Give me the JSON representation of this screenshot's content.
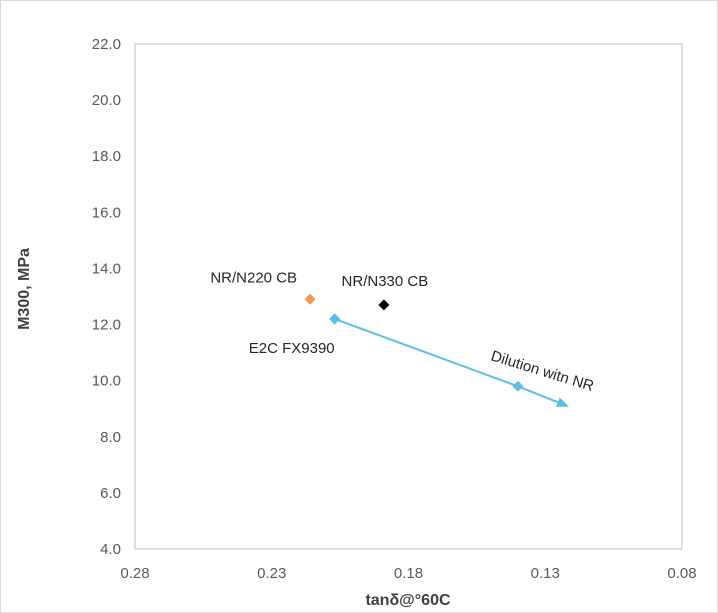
{
  "chart_data": {
    "type": "scatter",
    "title": "",
    "xlabel": "tanδ@°60C",
    "ylabel": "M300, MPa",
    "xlim": [
      0.28,
      0.08
    ],
    "ylim": [
      4.0,
      22.0
    ],
    "x_reversed": true,
    "grid": false,
    "x_ticks": [
      "0.28",
      "0.23",
      "0.18",
      "0.13",
      "0.08"
    ],
    "y_ticks": [
      "4.0",
      "6.0",
      "8.0",
      "10.0",
      "12.0",
      "14.0",
      "16.0",
      "18.0",
      "20.0",
      "22.0"
    ],
    "points": [
      {
        "label": "NR/N220 CB",
        "x": 0.216,
        "y": 12.9,
        "color": "#f79646",
        "marker": "diamond"
      },
      {
        "label": "NR/N330 CB",
        "x": 0.189,
        "y": 12.7,
        "color": "#000000",
        "marker": "diamond"
      },
      {
        "label": "E2C FX9390",
        "x": 0.207,
        "y": 12.2,
        "color": "#5bc0de",
        "marker": "diamond"
      }
    ],
    "dilution_series": {
      "x": [
        0.207,
        0.14,
        0.122
      ],
      "y": [
        12.2,
        9.8,
        9.1
      ],
      "color": "#5bc0de",
      "marker_indices": [
        0,
        1
      ],
      "arrow_end": true
    },
    "annotation": "Dilution witn NR"
  }
}
